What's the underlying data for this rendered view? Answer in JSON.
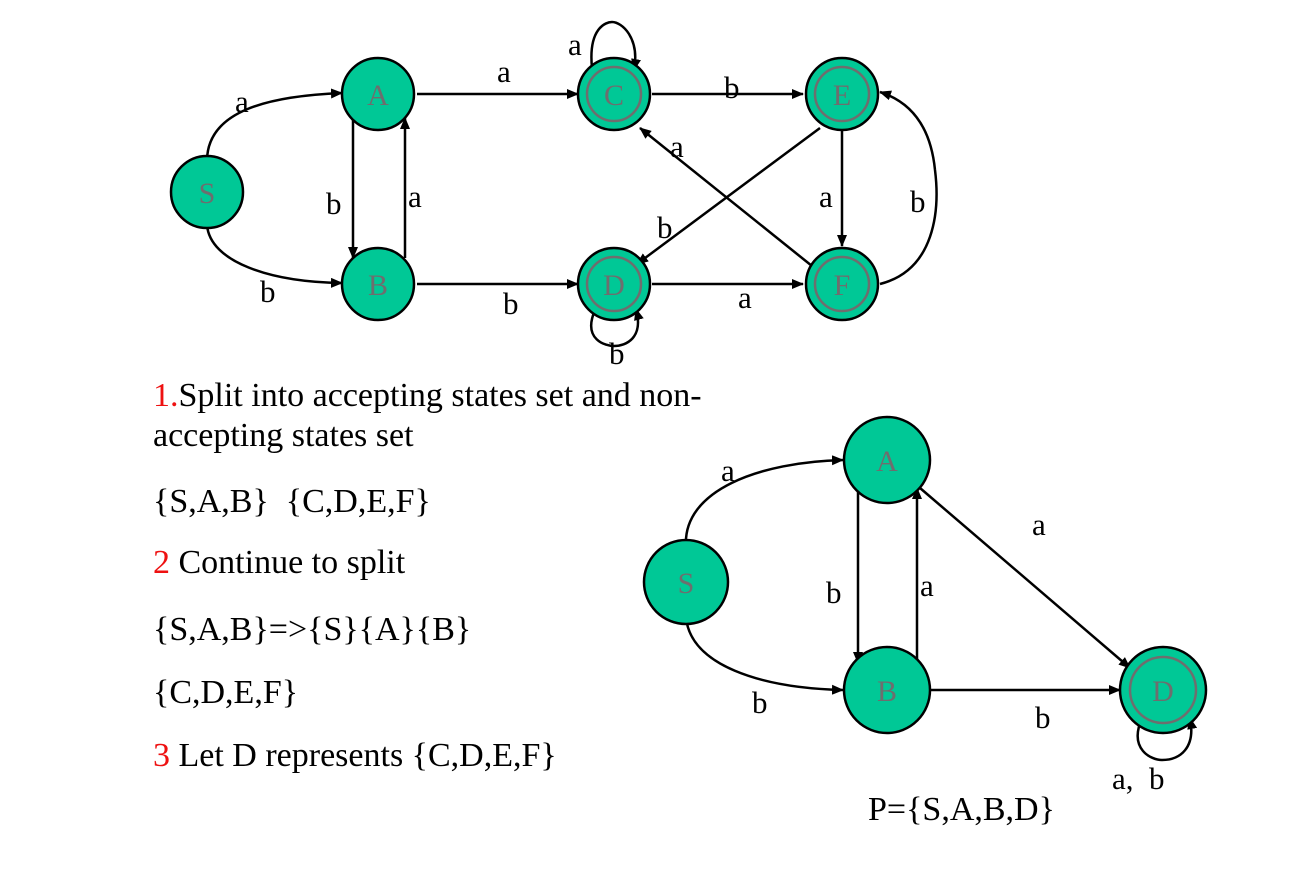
{
  "dfa_original": {
    "states": [
      {
        "id": "S",
        "accepting": false
      },
      {
        "id": "A",
        "accepting": false
      },
      {
        "id": "B",
        "accepting": false
      },
      {
        "id": "C",
        "accepting": true
      },
      {
        "id": "D",
        "accepting": true
      },
      {
        "id": "E",
        "accepting": true
      },
      {
        "id": "F",
        "accepting": true
      }
    ],
    "transitions": [
      {
        "from": "S",
        "to": "A",
        "label": "a"
      },
      {
        "from": "S",
        "to": "B",
        "label": "b"
      },
      {
        "from": "A",
        "to": "B",
        "label": "b"
      },
      {
        "from": "B",
        "to": "A",
        "label": "a"
      },
      {
        "from": "A",
        "to": "C",
        "label": "a"
      },
      {
        "from": "B",
        "to": "D",
        "label": "b"
      },
      {
        "from": "C",
        "to": "C",
        "label": "a"
      },
      {
        "from": "C",
        "to": "E",
        "label": "b"
      },
      {
        "from": "D",
        "to": "D",
        "label": "b"
      },
      {
        "from": "D",
        "to": "F",
        "label": "a"
      },
      {
        "from": "E",
        "to": "F",
        "label": "a"
      },
      {
        "from": "E",
        "to": "D",
        "label": "b"
      },
      {
        "from": "F",
        "to": "C",
        "label": "a"
      },
      {
        "from": "F",
        "to": "E",
        "label": "b"
      }
    ]
  },
  "dfa_minimized": {
    "states": [
      {
        "id": "S",
        "accepting": false
      },
      {
        "id": "A",
        "accepting": false
      },
      {
        "id": "B",
        "accepting": false
      },
      {
        "id": "D",
        "accepting": true
      }
    ],
    "transitions": [
      {
        "from": "S",
        "to": "A",
        "label": "a"
      },
      {
        "from": "S",
        "to": "B",
        "label": "b"
      },
      {
        "from": "A",
        "to": "B",
        "label": "b"
      },
      {
        "from": "B",
        "to": "A",
        "label": "a"
      },
      {
        "from": "A",
        "to": "D",
        "label": "a"
      },
      {
        "from": "B",
        "to": "D",
        "label": "b"
      },
      {
        "from": "D",
        "to": "D",
        "label": "a,  b"
      }
    ]
  },
  "steps": {
    "step1_num": "1.",
    "step1_text_line1": "Split into accepting states set and non-",
    "step1_text_line2": "accepting states set",
    "step1_sets": "{S,A,B}  {C,D,E,F}",
    "step2_num": "2",
    "step2_text": " Continue to split",
    "step2_line1": "{S,A,B}=>{S}{A}{B}",
    "step2_line2": "{C,D,E,F}",
    "step3_num": "3",
    "step3_text": " Let D represents {C,D,E,F}"
  },
  "result": {
    "p_set": "P={S,A,B,D}"
  },
  "colors": {
    "state_fill": "#00c896",
    "state_label": "#6e6e6e",
    "step_number": "#ee1111"
  }
}
